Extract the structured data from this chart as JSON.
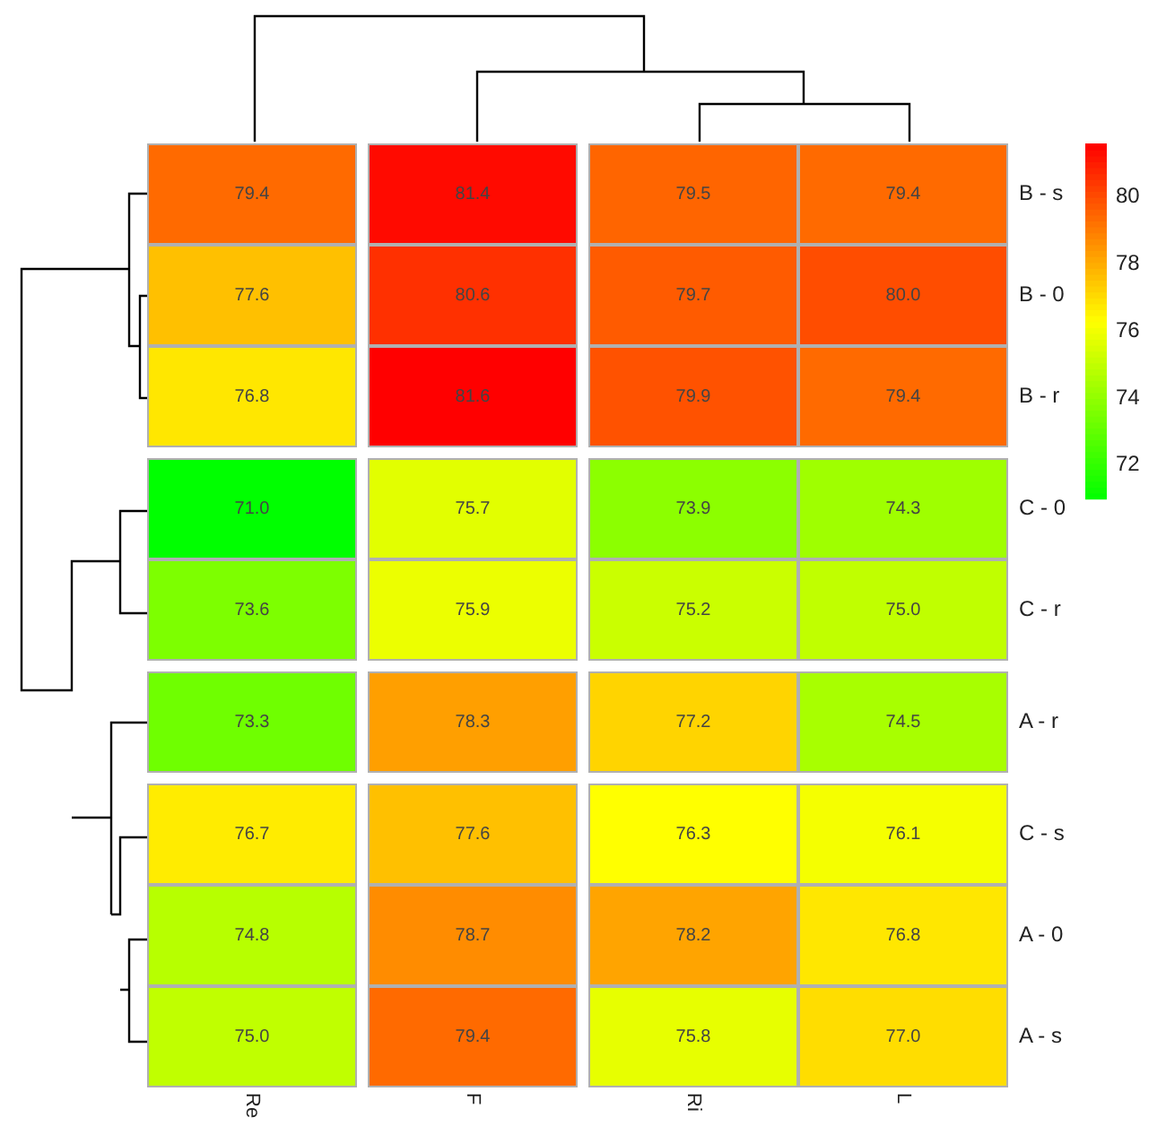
{
  "chart_data": {
    "type": "heatmap",
    "categories": [
      "Re",
      "F",
      "Ri",
      "L"
    ],
    "y_categories": [
      "B - s",
      "B - 0",
      "B - r",
      "C - 0",
      "C - r",
      "A - r",
      "C - s",
      "A - 0",
      "A - s"
    ],
    "cells": [
      [
        79.4,
        81.4,
        79.5,
        79.4
      ],
      [
        77.6,
        80.6,
        79.7,
        80.0
      ],
      [
        76.8,
        81.6,
        79.9,
        79.4
      ],
      [
        71.0,
        75.7,
        73.9,
        74.3
      ],
      [
        73.6,
        75.9,
        75.2,
        75.0
      ],
      [
        73.3,
        78.3,
        77.2,
        74.5
      ],
      [
        76.7,
        77.6,
        76.3,
        76.1
      ],
      [
        74.8,
        78.7,
        78.2,
        76.8
      ],
      [
        75.0,
        79.4,
        75.8,
        77.0
      ]
    ],
    "cell_labels": [
      [
        "79.4",
        "81.4",
        "79.5",
        "79.4"
      ],
      [
        "77.6",
        "80.6",
        "79.7",
        "80.0"
      ],
      [
        "76.8",
        "81.6",
        "79.9",
        "79.4"
      ],
      [
        "71.0",
        "75.7",
        "73.9",
        "74.3"
      ],
      [
        "73.6",
        "75.9",
        "75.2",
        "75.0"
      ],
      [
        "73.3",
        "78.3",
        "77.2",
        "74.5"
      ],
      [
        "76.7",
        "77.6",
        "76.3",
        "76.1"
      ],
      [
        "74.8",
        "78.7",
        "78.2",
        "76.8"
      ],
      [
        "75.0",
        "79.4",
        "75.8",
        "77.0"
      ]
    ],
    "clim": [
      71,
      81.6
    ],
    "cticks": [
      72,
      74,
      76,
      78,
      80
    ]
  }
}
